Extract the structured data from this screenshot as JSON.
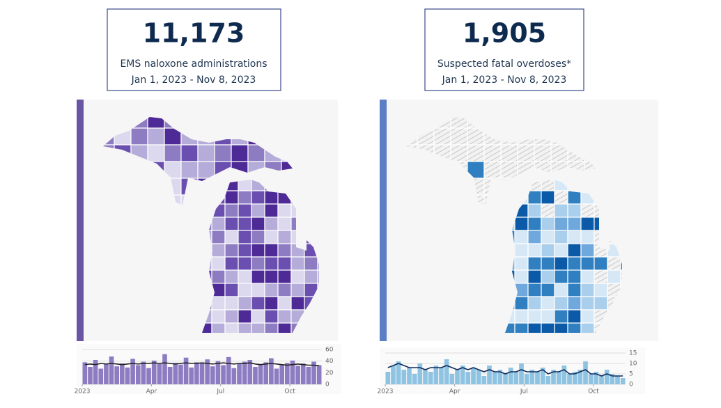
{
  "kpis": [
    {
      "value": "11,173",
      "label": "EMS naloxone administrations",
      "date_range": "Jan 1, 2023 - Nov 8, 2023"
    },
    {
      "value": "1,905",
      "label": "Suspected fatal overdoses*",
      "date_range": "Jan 1, 2023 - Nov 8, 2023"
    }
  ],
  "chart_data": [
    {
      "type": "bar",
      "x": [
        0,
        1,
        2,
        3,
        4,
        5,
        6,
        7,
        8,
        9,
        10,
        11,
        12,
        13,
        14,
        15,
        16,
        17,
        18,
        19,
        20,
        21,
        22,
        23,
        24,
        25,
        26,
        27,
        28,
        29,
        30,
        31,
        32,
        33,
        34,
        35,
        36,
        37,
        38,
        39,
        40,
        41,
        42,
        43,
        44
      ],
      "xlim": [
        0,
        45
      ],
      "xticks": [
        {
          "value": 0,
          "label": "2023"
        },
        {
          "value": 13,
          "label": "Apr"
        },
        {
          "value": 26,
          "label": "Jul"
        },
        {
          "value": 39,
          "label": "Oct"
        }
      ],
      "ylim": [
        0,
        60
      ],
      "yticks": [
        0,
        20,
        40,
        60
      ],
      "grid": true,
      "series": [
        {
          "color": "#8e7cc3",
          "values": [
            38,
            30,
            42,
            27,
            35,
            48,
            31,
            36,
            29,
            44,
            33,
            39,
            28,
            41,
            35,
            52,
            30,
            37,
            34,
            46,
            29,
            38,
            36,
            43,
            31,
            40,
            33,
            47,
            28,
            36,
            39,
            42,
            30,
            35,
            38,
            45,
            27,
            34,
            37,
            41,
            32,
            36,
            30,
            39,
            33
          ]
        },
        {
          "color": "#222222",
          "line": true,
          "values": [
            34,
            35,
            34,
            36,
            35,
            36,
            35,
            34,
            35,
            36,
            35,
            36,
            36,
            37,
            36,
            37,
            36,
            35,
            36,
            37,
            36,
            36,
            37,
            36,
            35,
            36,
            37,
            36,
            35,
            36,
            36,
            37,
            35,
            34,
            35,
            36,
            35,
            34,
            33,
            34,
            35,
            34,
            33,
            33,
            32
          ]
        }
      ]
    },
    {
      "type": "bar",
      "x": [
        0,
        1,
        2,
        3,
        4,
        5,
        6,
        7,
        8,
        9,
        10,
        11,
        12,
        13,
        14,
        15,
        16,
        17,
        18,
        19,
        20,
        21,
        22,
        23,
        24,
        25,
        26,
        27,
        28,
        29,
        30,
        31,
        32,
        33,
        34,
        35,
        36,
        37,
        38,
        39,
        40,
        41,
        42,
        43,
        44
      ],
      "xlim": [
        0,
        45
      ],
      "xticks": [
        {
          "value": 0,
          "label": "2023"
        },
        {
          "value": 13,
          "label": "Apr"
        },
        {
          "value": 26,
          "label": "Jul"
        },
        {
          "value": 39,
          "label": "Oct"
        }
      ],
      "ylim": [
        0,
        15
      ],
      "yticks": [
        0,
        5,
        10,
        15
      ],
      "grid": true,
      "series": [
        {
          "color": "#8ec3e2",
          "values": [
            6,
            9,
            11,
            7,
            8,
            5,
            10,
            7,
            6,
            9,
            8,
            12,
            5,
            7,
            9,
            6,
            8,
            7,
            4,
            9,
            6,
            7,
            5,
            8,
            6,
            10,
            5,
            7,
            6,
            8,
            4,
            7,
            6,
            9,
            5,
            6,
            7,
            11,
            5,
            6,
            4,
            7,
            5,
            4,
            3
          ]
        },
        {
          "color": "#0d2a5c",
          "line": true,
          "values": [
            8,
            9,
            10,
            9,
            8,
            8,
            8,
            7,
            8,
            8,
            8,
            9,
            8,
            7,
            8,
            7,
            8,
            7,
            6,
            7,
            6,
            6,
            5,
            6,
            6,
            7,
            6,
            6,
            6,
            7,
            5,
            6,
            6,
            7,
            5,
            5,
            6,
            7,
            5,
            5,
            4,
            5,
            4,
            4,
            4
          ]
        }
      ]
    }
  ]
}
